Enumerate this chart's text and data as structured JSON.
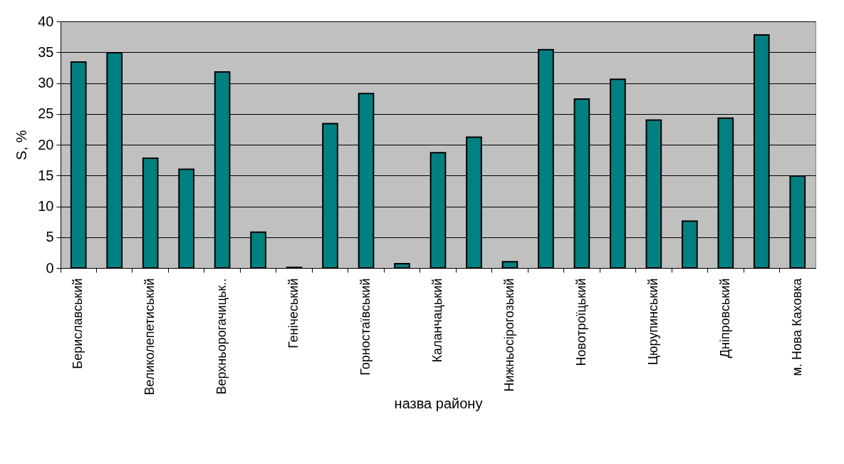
{
  "chart_data": {
    "type": "bar",
    "xlabel": "назва району",
    "ylabel": "S, %",
    "categories": [
      "Бериславський",
      null,
      "Великолепетиський",
      null,
      "Верхньорогачицьк..",
      null,
      "Генічеський",
      null,
      "Горностаївський",
      null,
      "Каланчацький",
      null,
      "Нижньосірогозький",
      null,
      "Новотроїцький",
      null,
      "Цюрупинський",
      null,
      "Дніпровський",
      null,
      "м. Нова Каховка"
    ],
    "values": [
      33.4,
      34.9,
      17.8,
      16,
      31.8,
      5.8,
      0.1,
      23.4,
      28.3,
      0.7,
      18.7,
      21.2,
      1.0,
      35.4,
      27.4,
      30.6,
      24,
      7.6,
      24.3,
      37.8,
      14.9
    ],
    "color": "#008080",
    "ylim": [
      0,
      40
    ],
    "yticks": [
      0,
      5,
      10,
      15,
      20,
      25,
      30,
      35,
      40
    ],
    "grid": "y"
  }
}
